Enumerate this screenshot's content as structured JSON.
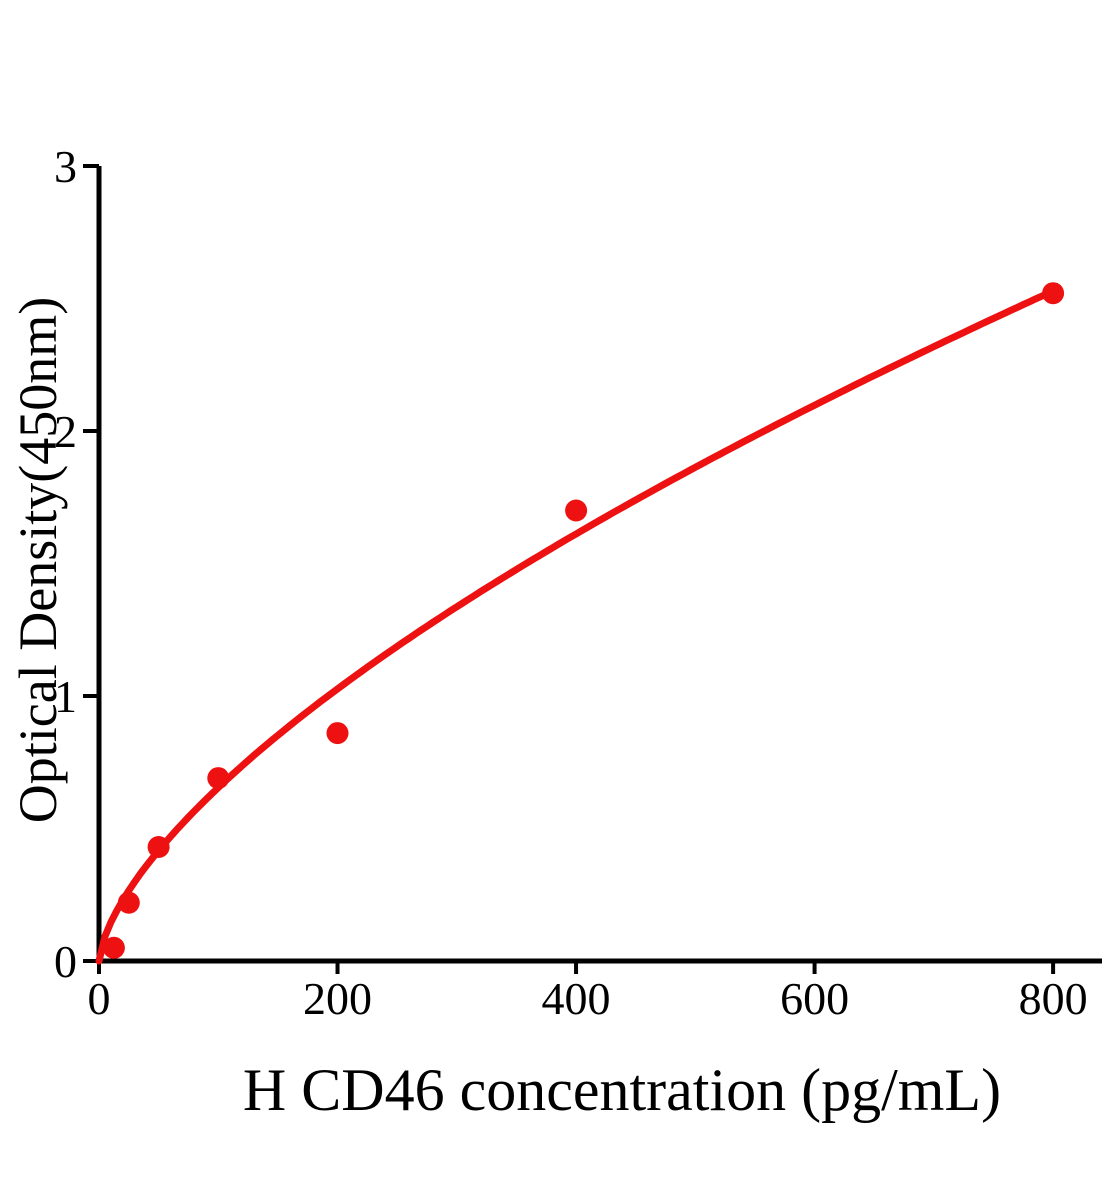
{
  "figure": {
    "background": "#ffffff"
  },
  "chart_data": {
    "type": "scatter",
    "title": "",
    "xlabel": "H CD46 concentration (pg/mL)",
    "ylabel": "Optical Density(450nm)",
    "points": [
      {
        "x": 12.5,
        "y": 0.05
      },
      {
        "x": 25,
        "y": 0.22
      },
      {
        "x": 50,
        "y": 0.43
      },
      {
        "x": 100,
        "y": 0.69
      },
      {
        "x": 200,
        "y": 0.86
      },
      {
        "x": 400,
        "y": 1.7
      },
      {
        "x": 800,
        "y": 2.52
      }
    ],
    "curve_fit": {
      "model": "power: y = a * x^b",
      "a": 0.0328,
      "b": 0.65,
      "x_start": 0,
      "x_end": 800
    },
    "x_ticks": [
      0,
      200,
      400,
      600,
      800
    ],
    "y_ticks": [
      0,
      1,
      2,
      3
    ],
    "xlim": [
      0,
      841
    ],
    "ylim": [
      0,
      3
    ],
    "grid": false,
    "legend": false,
    "marker_color": "#EE1111",
    "line_color": "#EE1111",
    "axis_color": "#000000",
    "text_color": "#000000"
  }
}
